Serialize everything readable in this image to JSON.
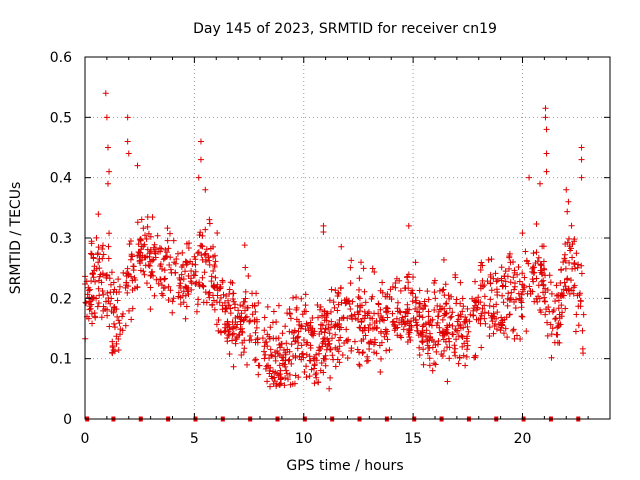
{
  "chart_data": {
    "type": "scatter",
    "title": "Day 145 of 2023, SRMTID for receiver cn19",
    "xlabel": "GPS time / hours",
    "ylabel": "SRMTID / TECUs",
    "xlim": [
      0,
      24
    ],
    "ylim": [
      0,
      0.6
    ],
    "xticks": [
      0,
      5,
      10,
      15,
      20
    ],
    "yticks": [
      0,
      0.1,
      0.2,
      0.3,
      0.4,
      0.5,
      0.6
    ],
    "ytick_labels": [
      "0",
      "0.1",
      "0.2",
      "0.3",
      "0.4",
      "0.5",
      "0.6"
    ],
    "grid": true,
    "marker": "+",
    "marker_color": "#e00000",
    "series": [
      {
        "name": "SRMTID",
        "trend": [
          {
            "x": 0.0,
            "y": 0.19
          },
          {
            "x": 0.5,
            "y": 0.23
          },
          {
            "x": 1.0,
            "y": 0.22
          },
          {
            "x": 1.5,
            "y": 0.15
          },
          {
            "x": 2.0,
            "y": 0.22
          },
          {
            "x": 2.5,
            "y": 0.27
          },
          {
            "x": 3.0,
            "y": 0.27
          },
          {
            "x": 3.5,
            "y": 0.25
          },
          {
            "x": 4.0,
            "y": 0.24
          },
          {
            "x": 4.5,
            "y": 0.23
          },
          {
            "x": 5.0,
            "y": 0.24
          },
          {
            "x": 5.5,
            "y": 0.26
          },
          {
            "x": 6.0,
            "y": 0.22
          },
          {
            "x": 6.5,
            "y": 0.16
          },
          {
            "x": 7.0,
            "y": 0.16
          },
          {
            "x": 7.5,
            "y": 0.17
          },
          {
            "x": 8.0,
            "y": 0.12
          },
          {
            "x": 8.5,
            "y": 0.1
          },
          {
            "x": 9.0,
            "y": 0.09
          },
          {
            "x": 9.5,
            "y": 0.13
          },
          {
            "x": 10.0,
            "y": 0.14
          },
          {
            "x": 10.5,
            "y": 0.12
          },
          {
            "x": 11.0,
            "y": 0.13
          },
          {
            "x": 11.5,
            "y": 0.15
          },
          {
            "x": 12.0,
            "y": 0.18
          },
          {
            "x": 12.5,
            "y": 0.17
          },
          {
            "x": 13.0,
            "y": 0.15
          },
          {
            "x": 13.5,
            "y": 0.16
          },
          {
            "x": 14.0,
            "y": 0.17
          },
          {
            "x": 14.5,
            "y": 0.18
          },
          {
            "x": 15.0,
            "y": 0.17
          },
          {
            "x": 15.5,
            "y": 0.15
          },
          {
            "x": 16.0,
            "y": 0.16
          },
          {
            "x": 16.5,
            "y": 0.16
          },
          {
            "x": 17.0,
            "y": 0.16
          },
          {
            "x": 17.5,
            "y": 0.15
          },
          {
            "x": 18.0,
            "y": 0.18
          },
          {
            "x": 18.5,
            "y": 0.2
          },
          {
            "x": 19.0,
            "y": 0.18
          },
          {
            "x": 19.5,
            "y": 0.21
          },
          {
            "x": 20.0,
            "y": 0.22
          },
          {
            "x": 20.5,
            "y": 0.25
          },
          {
            "x": 21.0,
            "y": 0.23
          },
          {
            "x": 21.5,
            "y": 0.15
          },
          {
            "x": 22.0,
            "y": 0.26
          },
          {
            "x": 22.5,
            "y": 0.22
          },
          {
            "x": 22.8,
            "y": 0.15
          }
        ],
        "spikes": [
          {
            "x": 0.95,
            "y": 0.54
          },
          {
            "x": 1.0,
            "y": 0.5
          },
          {
            "x": 1.05,
            "y": 0.45
          },
          {
            "x": 1.05,
            "y": 0.39
          },
          {
            "x": 1.1,
            "y": 0.41
          },
          {
            "x": 1.95,
            "y": 0.5
          },
          {
            "x": 1.95,
            "y": 0.46
          },
          {
            "x": 2.0,
            "y": 0.44
          },
          {
            "x": 2.4,
            "y": 0.42
          },
          {
            "x": 5.3,
            "y": 0.46
          },
          {
            "x": 5.3,
            "y": 0.43
          },
          {
            "x": 5.2,
            "y": 0.4
          },
          {
            "x": 5.5,
            "y": 0.38
          },
          {
            "x": 10.9,
            "y": 0.32
          },
          {
            "x": 10.9,
            "y": 0.31
          },
          {
            "x": 14.8,
            "y": 0.32
          },
          {
            "x": 20.3,
            "y": 0.4
          },
          {
            "x": 20.8,
            "y": 0.39
          },
          {
            "x": 21.05,
            "y": 0.515
          },
          {
            "x": 21.05,
            "y": 0.5
          },
          {
            "x": 21.1,
            "y": 0.48
          },
          {
            "x": 21.1,
            "y": 0.44
          },
          {
            "x": 21.1,
            "y": 0.41
          },
          {
            "x": 22.0,
            "y": 0.38
          },
          {
            "x": 22.1,
            "y": 0.36
          },
          {
            "x": 22.7,
            "y": 0.45
          },
          {
            "x": 22.7,
            "y": 0.43
          },
          {
            "x": 22.7,
            "y": 0.4
          }
        ],
        "zero_markers": [
          0.1,
          1.3,
          2.55,
          3.8,
          5.05,
          6.3,
          7.55,
          8.8,
          10.05,
          11.3,
          12.55,
          13.8,
          15.05,
          16.3,
          17.55,
          18.8,
          20.05,
          21.3,
          22.55
        ]
      }
    ]
  }
}
